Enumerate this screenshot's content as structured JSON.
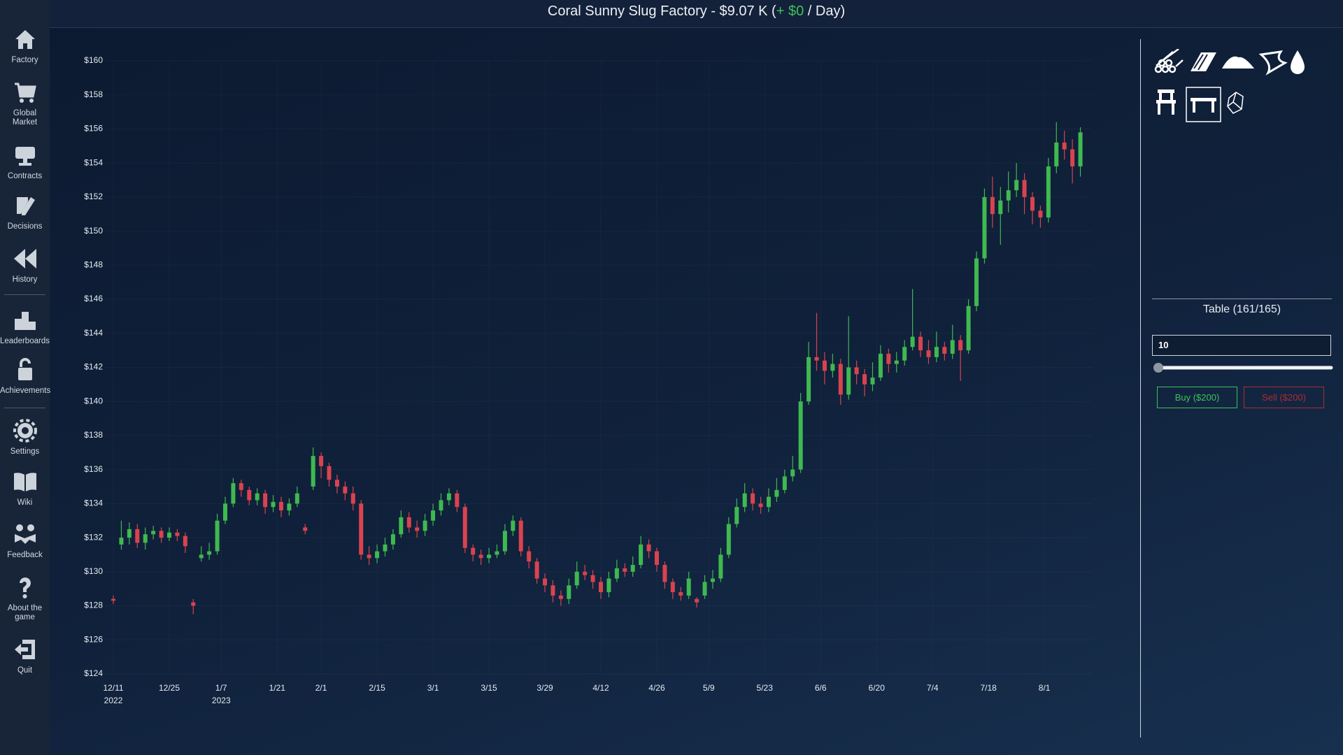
{
  "header": {
    "title_prefix": "Coral Sunny Slug Factory - $9.07 K (",
    "income": "+ $0",
    "title_suffix": " / Day)"
  },
  "sidebar": {
    "items": [
      "Factory",
      "Global Market",
      "Contracts",
      "Decisions",
      "History",
      "Leaderboards",
      "Achievements",
      "Settings",
      "Wiki",
      "Feedback",
      "About the game",
      "Quit"
    ]
  },
  "panel": {
    "product": "Table (161/165)",
    "quantity": "10",
    "buy": "Buy ($200)",
    "sell": "Sell ($200)"
  },
  "chart_data": {
    "type": "candlestick",
    "up_color": "#3fb950",
    "down_color": "#d9434f",
    "grid": true,
    "xlim": [
      "2022-12-09",
      "2023-08-13"
    ],
    "ylim": [
      124,
      160
    ],
    "yticks": [
      {
        "value": 124,
        "label": "$124"
      },
      {
        "value": 126,
        "label": "$126"
      },
      {
        "value": 128,
        "label": "$128"
      },
      {
        "value": 130,
        "label": "$130"
      },
      {
        "value": 132,
        "label": "$132"
      },
      {
        "value": 134,
        "label": "$134"
      },
      {
        "value": 136,
        "label": "$136"
      },
      {
        "value": 138,
        "label": "$138"
      },
      {
        "value": 140,
        "label": "$140"
      },
      {
        "value": 142,
        "label": "$142"
      },
      {
        "value": 144,
        "label": "$144"
      },
      {
        "value": 146,
        "label": "$146"
      },
      {
        "value": 148,
        "label": "$148"
      },
      {
        "value": 150,
        "label": "$150"
      },
      {
        "value": 152,
        "label": "$152"
      },
      {
        "value": 154,
        "label": "$154"
      },
      {
        "value": 156,
        "label": "$156"
      },
      {
        "value": 158,
        "label": "$158"
      },
      {
        "value": 160,
        "label": "$160"
      }
    ],
    "xticks": [
      {
        "value": "2022-12-11",
        "label": "12/11",
        "sublabel": "2022"
      },
      {
        "value": "2022-12-25",
        "label": "12/25"
      },
      {
        "value": "2023-01-07",
        "label": "1/7",
        "sublabel": "2023"
      },
      {
        "value": "2023-01-21",
        "label": "1/21"
      },
      {
        "value": "2023-02-01",
        "label": "2/1"
      },
      {
        "value": "2023-02-15",
        "label": "2/15"
      },
      {
        "value": "2023-03-01",
        "label": "3/1"
      },
      {
        "value": "2023-03-15",
        "label": "3/15"
      },
      {
        "value": "2023-03-29",
        "label": "3/29"
      },
      {
        "value": "2023-04-12",
        "label": "4/12"
      },
      {
        "value": "2023-04-26",
        "label": "4/26"
      },
      {
        "value": "2023-05-09",
        "label": "5/9"
      },
      {
        "value": "2023-05-23",
        "label": "5/23"
      },
      {
        "value": "2023-06-06",
        "label": "6/6"
      },
      {
        "value": "2023-06-20",
        "label": "6/20"
      },
      {
        "value": "2023-07-04",
        "label": "7/4"
      },
      {
        "value": "2023-07-18",
        "label": "7/18"
      },
      {
        "value": "2023-08-01",
        "label": "8/1"
      }
    ],
    "x": [
      "2022-12-11",
      "2022-12-13",
      "2022-12-15",
      "2022-12-17",
      "2022-12-19",
      "2022-12-21",
      "2022-12-23",
      "2022-12-25",
      "2022-12-27",
      "2022-12-29",
      "2022-12-31",
      "2023-01-02",
      "2023-01-04",
      "2023-01-06",
      "2023-01-08",
      "2023-01-10",
      "2023-01-12",
      "2023-01-14",
      "2023-01-16",
      "2023-01-18",
      "2023-01-20",
      "2023-01-22",
      "2023-01-24",
      "2023-01-26",
      "2023-01-28",
      "2023-01-30",
      "2023-02-01",
      "2023-02-03",
      "2023-02-05",
      "2023-02-07",
      "2023-02-09",
      "2023-02-11",
      "2023-02-13",
      "2023-02-15",
      "2023-02-17",
      "2023-02-19",
      "2023-02-21",
      "2023-02-23",
      "2023-02-25",
      "2023-02-27",
      "2023-03-01",
      "2023-03-03",
      "2023-03-05",
      "2023-03-07",
      "2023-03-09",
      "2023-03-11",
      "2023-03-13",
      "2023-03-15",
      "2023-03-17",
      "2023-03-19",
      "2023-03-21",
      "2023-03-23",
      "2023-03-25",
      "2023-03-27",
      "2023-03-29",
      "2023-03-31",
      "2023-04-02",
      "2023-04-04",
      "2023-04-06",
      "2023-04-08",
      "2023-04-10",
      "2023-04-12",
      "2023-04-14",
      "2023-04-16",
      "2023-04-18",
      "2023-04-20",
      "2023-04-22",
      "2023-04-24",
      "2023-04-26",
      "2023-04-28",
      "2023-04-30",
      "2023-05-02",
      "2023-05-04",
      "2023-05-06",
      "2023-05-08",
      "2023-05-10",
      "2023-05-12",
      "2023-05-14",
      "2023-05-16",
      "2023-05-18",
      "2023-05-20",
      "2023-05-22",
      "2023-05-24",
      "2023-05-26",
      "2023-05-28",
      "2023-05-30",
      "2023-06-01",
      "2023-06-03",
      "2023-06-05",
      "2023-06-07",
      "2023-06-09",
      "2023-06-11",
      "2023-06-13",
      "2023-06-15",
      "2023-06-17",
      "2023-06-19",
      "2023-06-21",
      "2023-06-23",
      "2023-06-25",
      "2023-06-27",
      "2023-06-29",
      "2023-07-01",
      "2023-07-03",
      "2023-07-05",
      "2023-07-07",
      "2023-07-09",
      "2023-07-11",
      "2023-07-13",
      "2023-07-15",
      "2023-07-17",
      "2023-07-19",
      "2023-07-21",
      "2023-07-23",
      "2023-07-25",
      "2023-07-27",
      "2023-07-29",
      "2023-07-31",
      "2023-08-02",
      "2023-08-04",
      "2023-08-06",
      "2023-08-08",
      "2023-08-10"
    ],
    "open": [
      128.4,
      131.6,
      132.0,
      132.5,
      131.7,
      132.2,
      132.4,
      132.0,
      132.3,
      132.1,
      128.2,
      130.8,
      131.0,
      131.2,
      133.0,
      134.0,
      135.2,
      134.8,
      134.2,
      134.6,
      133.8,
      134.1,
      133.6,
      134.0,
      132.6,
      135.0,
      136.8,
      136.2,
      135.4,
      135.0,
      134.6,
      134.0,
      131.0,
      130.8,
      131.2,
      131.6,
      132.2,
      133.2,
      132.6,
      132.4,
      133.0,
      133.6,
      134.2,
      134.6,
      133.8,
      131.4,
      131.0,
      130.8,
      131.0,
      131.2,
      132.4,
      133.0,
      131.2,
      130.6,
      129.6,
      129.2,
      128.6,
      128.4,
      129.2,
      130.0,
      129.8,
      129.4,
      128.8,
      129.6,
      130.2,
      130.0,
      130.4,
      131.6,
      131.2,
      130.4,
      129.4,
      128.8,
      128.6,
      128.4,
      128.6,
      129.4,
      129.6,
      131.0,
      132.8,
      133.8,
      134.6,
      134.0,
      133.8,
      134.4,
      134.8,
      135.6,
      136.0,
      140.0,
      142.6,
      142.4,
      141.8,
      142.2,
      140.4,
      142.0,
      141.6,
      141.0,
      141.4,
      142.8,
      142.2,
      142.4,
      143.2,
      143.8,
      143.0,
      142.6,
      143.2,
      142.8,
      143.6,
      143.0,
      145.6,
      148.4,
      152.0,
      151.0,
      151.8,
      152.4,
      153.0,
      152.0,
      151.2,
      150.8,
      153.8,
      155.2,
      154.8,
      153.8
    ],
    "high": [
      128.6,
      133.0,
      132.9,
      132.8,
      132.6,
      132.7,
      132.6,
      132.6,
      132.5,
      132.3,
      128.4,
      131.5,
      131.7,
      133.4,
      134.4,
      135.5,
      135.4,
      135.0,
      134.9,
      134.8,
      134.5,
      134.4,
      134.3,
      135.0,
      132.8,
      137.3,
      137.0,
      136.4,
      135.7,
      135.3,
      135.0,
      134.2,
      131.5,
      131.6,
      132.0,
      132.5,
      133.6,
      133.5,
      133.0,
      133.4,
      134.0,
      134.6,
      134.9,
      134.8,
      134.0,
      131.6,
      131.3,
      131.4,
      131.6,
      132.8,
      133.3,
      133.2,
      131.5,
      130.8,
      129.9,
      129.5,
      128.9,
      129.6,
      130.6,
      130.4,
      130.1,
      129.7,
      130.0,
      130.7,
      130.5,
      130.9,
      132.1,
      131.9,
      131.4,
      130.6,
      129.6,
      129.1,
      130.0,
      128.5,
      129.8,
      130.1,
      131.4,
      133.2,
      134.3,
      135.2,
      134.9,
      134.4,
      134.9,
      135.5,
      136.0,
      136.8,
      140.5,
      143.5,
      145.2,
      142.9,
      142.8,
      142.5,
      145.0,
      142.4,
      141.9,
      142.3,
      143.3,
      143.1,
      142.9,
      143.6,
      146.6,
      144.1,
      143.6,
      144.1,
      143.5,
      144.5,
      143.9,
      146.0,
      148.8,
      152.5,
      153.2,
      152.6,
      153.5,
      154.0,
      153.4,
      152.3,
      151.5,
      154.3,
      156.4,
      155.9,
      155.4,
      156.1
    ],
    "low": [
      128.1,
      131.3,
      131.6,
      131.4,
      131.3,
      131.9,
      131.7,
      131.8,
      131.8,
      131.1,
      127.5,
      130.6,
      130.7,
      131.0,
      132.8,
      133.8,
      134.4,
      133.9,
      133.9,
      133.4,
      133.5,
      133.2,
      133.3,
      133.8,
      132.2,
      134.8,
      135.5,
      135.0,
      134.6,
      134.2,
      133.6,
      130.7,
      130.4,
      130.5,
      130.9,
      131.3,
      132.0,
      132.3,
      132.0,
      132.1,
      132.7,
      133.3,
      133.9,
      133.5,
      131.1,
      130.6,
      130.4,
      130.5,
      130.8,
      131.0,
      132.1,
      130.9,
      130.2,
      129.3,
      128.8,
      128.2,
      128.0,
      128.1,
      129.0,
      129.5,
      129.0,
      128.4,
      128.5,
      129.4,
      129.7,
      129.7,
      130.2,
      130.8,
      130.0,
      129.0,
      128.4,
      128.3,
      128.4,
      127.9,
      128.4,
      129.0,
      129.4,
      130.8,
      132.6,
      133.5,
      133.6,
      133.4,
      133.5,
      134.1,
      134.6,
      135.3,
      135.8,
      139.8,
      141.8,
      141.0,
      141.4,
      139.8,
      140.1,
      141.0,
      140.3,
      140.6,
      141.2,
      141.7,
      141.7,
      142.1,
      143.0,
      142.6,
      142.2,
      142.3,
      142.4,
      142.5,
      141.2,
      142.8,
      145.3,
      148.1,
      150.2,
      149.2,
      151.1,
      152.0,
      151.0,
      150.4,
      150.2,
      150.5,
      153.4,
      154.2,
      152.8,
      153.2
    ],
    "close": [
      128.3,
      132.0,
      132.5,
      131.7,
      132.2,
      132.4,
      132.0,
      132.3,
      132.1,
      131.5,
      128.0,
      131.0,
      131.2,
      133.0,
      134.0,
      135.2,
      134.8,
      134.2,
      134.6,
      133.8,
      134.1,
      133.6,
      134.0,
      134.6,
      132.4,
      136.8,
      136.2,
      135.4,
      135.0,
      134.6,
      134.0,
      131.0,
      130.8,
      131.2,
      131.6,
      132.2,
      133.2,
      132.6,
      132.4,
      133.0,
      133.6,
      134.2,
      134.6,
      133.8,
      131.4,
      131.0,
      130.8,
      131.0,
      131.2,
      132.4,
      133.0,
      131.2,
      130.6,
      129.6,
      129.2,
      128.6,
      128.4,
      129.2,
      130.0,
      129.8,
      129.4,
      128.8,
      129.6,
      130.2,
      130.0,
      130.4,
      131.6,
      131.2,
      130.4,
      129.4,
      128.8,
      128.6,
      129.6,
      128.2,
      129.4,
      129.6,
      131.0,
      132.8,
      133.8,
      134.6,
      134.0,
      133.8,
      134.4,
      134.8,
      135.6,
      136.0,
      140.0,
      142.6,
      142.4,
      141.8,
      142.2,
      140.4,
      142.0,
      141.6,
      141.0,
      141.4,
      142.8,
      142.2,
      142.4,
      143.2,
      143.8,
      143.0,
      142.6,
      143.2,
      142.8,
      143.6,
      143.0,
      145.6,
      148.4,
      152.0,
      151.0,
      151.8,
      152.4,
      153.0,
      152.0,
      151.2,
      150.8,
      153.8,
      155.2,
      154.8,
      153.8,
      155.8
    ]
  }
}
